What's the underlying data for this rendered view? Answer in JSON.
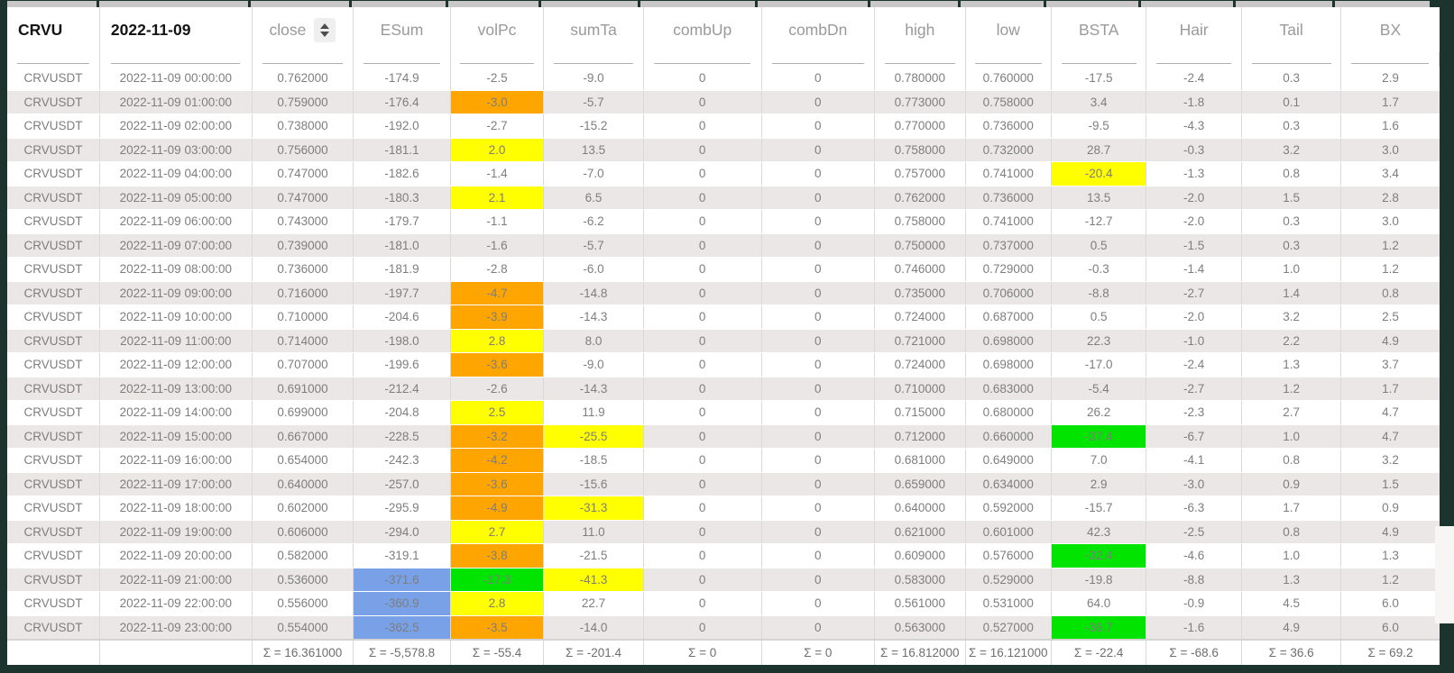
{
  "colors": {
    "orange": "#FFA500",
    "yellow": "#FFFF00",
    "green": "#00E400",
    "blue": "#79A1E8",
    "frame": "#1D342E",
    "stripe": "#EBE7E7"
  },
  "table": {
    "columns": [
      {
        "key": "sym",
        "label": "CRVU",
        "strong": true
      },
      {
        "key": "datetime",
        "label": "2022-11-09",
        "strong": true
      },
      {
        "key": "close",
        "label": "close",
        "sortable": true
      },
      {
        "key": "esum",
        "label": "ESum"
      },
      {
        "key": "volpc",
        "label": "volPc"
      },
      {
        "key": "sumta",
        "label": "sumTa"
      },
      {
        "key": "combup",
        "label": "combUp"
      },
      {
        "key": "combdn",
        "label": "combDn"
      },
      {
        "key": "high",
        "label": "high"
      },
      {
        "key": "low",
        "label": "low"
      },
      {
        "key": "bsta",
        "label": "BSTA"
      },
      {
        "key": "hair",
        "label": "Hair"
      },
      {
        "key": "tail",
        "label": "Tail"
      },
      {
        "key": "bx",
        "label": "BX"
      }
    ],
    "rows": [
      {
        "cells": [
          "CRVUSDT",
          "2022-11-09 00:00:00",
          "0.762000",
          "-174.9",
          "-2.5",
          "-9.0",
          "0",
          "0",
          "0.780000",
          "0.760000",
          "-17.5",
          "-2.4",
          "0.3",
          "2.9"
        ],
        "hl": {}
      },
      {
        "cells": [
          "CRVUSDT",
          "2022-11-09 01:00:00",
          "0.759000",
          "-176.4",
          "-3.0",
          "-5.7",
          "0",
          "0",
          "0.773000",
          "0.758000",
          "3.4",
          "-1.8",
          "0.1",
          "1.7"
        ],
        "hl": {
          "4": "orange"
        }
      },
      {
        "cells": [
          "CRVUSDT",
          "2022-11-09 02:00:00",
          "0.738000",
          "-192.0",
          "-2.7",
          "-15.2",
          "0",
          "0",
          "0.770000",
          "0.736000",
          "-9.5",
          "-4.3",
          "0.3",
          "1.6"
        ],
        "hl": {}
      },
      {
        "cells": [
          "CRVUSDT",
          "2022-11-09 03:00:00",
          "0.756000",
          "-181.1",
          "2.0",
          "13.5",
          "0",
          "0",
          "0.758000",
          "0.732000",
          "28.7",
          "-0.3",
          "3.2",
          "3.0"
        ],
        "hl": {
          "4": "yellow"
        }
      },
      {
        "cells": [
          "CRVUSDT",
          "2022-11-09 04:00:00",
          "0.747000",
          "-182.6",
          "-1.4",
          "-7.0",
          "0",
          "0",
          "0.757000",
          "0.741000",
          "-20.4",
          "-1.3",
          "0.8",
          "3.4"
        ],
        "hl": {
          "10": "yellow"
        }
      },
      {
        "cells": [
          "CRVUSDT",
          "2022-11-09 05:00:00",
          "0.747000",
          "-180.3",
          "2.1",
          "6.5",
          "0",
          "0",
          "0.762000",
          "0.736000",
          "13.5",
          "-2.0",
          "1.5",
          "2.8"
        ],
        "hl": {
          "4": "yellow"
        }
      },
      {
        "cells": [
          "CRVUSDT",
          "2022-11-09 06:00:00",
          "0.743000",
          "-179.7",
          "-1.1",
          "-6.2",
          "0",
          "0",
          "0.758000",
          "0.741000",
          "-12.7",
          "-2.0",
          "0.3",
          "3.0"
        ],
        "hl": {}
      },
      {
        "cells": [
          "CRVUSDT",
          "2022-11-09 07:00:00",
          "0.739000",
          "-181.0",
          "-1.6",
          "-5.7",
          "0",
          "0",
          "0.750000",
          "0.737000",
          "0.5",
          "-1.5",
          "0.3",
          "1.2"
        ],
        "hl": {}
      },
      {
        "cells": [
          "CRVUSDT",
          "2022-11-09 08:00:00",
          "0.736000",
          "-181.9",
          "-2.8",
          "-6.0",
          "0",
          "0",
          "0.746000",
          "0.729000",
          "-0.3",
          "-1.4",
          "1.0",
          "1.2"
        ],
        "hl": {}
      },
      {
        "cells": [
          "CRVUSDT",
          "2022-11-09 09:00:00",
          "0.716000",
          "-197.7",
          "-4.7",
          "-14.8",
          "0",
          "0",
          "0.735000",
          "0.706000",
          "-8.8",
          "-2.7",
          "1.4",
          "0.8"
        ],
        "hl": {
          "4": "orange"
        }
      },
      {
        "cells": [
          "CRVUSDT",
          "2022-11-09 10:00:00",
          "0.710000",
          "-204.6",
          "-3.9",
          "-14.3",
          "0",
          "0",
          "0.724000",
          "0.687000",
          "0.5",
          "-2.0",
          "3.2",
          "2.5"
        ],
        "hl": {
          "4": "orange"
        }
      },
      {
        "cells": [
          "CRVUSDT",
          "2022-11-09 11:00:00",
          "0.714000",
          "-198.0",
          "2.8",
          "8.0",
          "0",
          "0",
          "0.721000",
          "0.698000",
          "22.3",
          "-1.0",
          "2.2",
          "4.9"
        ],
        "hl": {
          "4": "yellow"
        }
      },
      {
        "cells": [
          "CRVUSDT",
          "2022-11-09 12:00:00",
          "0.707000",
          "-199.6",
          "-3.6",
          "-9.0",
          "0",
          "0",
          "0.724000",
          "0.698000",
          "-17.0",
          "-2.4",
          "1.3",
          "3.7"
        ],
        "hl": {
          "4": "orange"
        }
      },
      {
        "cells": [
          "CRVUSDT",
          "2022-11-09 13:00:00",
          "0.691000",
          "-212.4",
          "-2.6",
          "-14.3",
          "0",
          "0",
          "0.710000",
          "0.683000",
          "-5.4",
          "-2.7",
          "1.2",
          "1.7"
        ],
        "hl": {}
      },
      {
        "cells": [
          "CRVUSDT",
          "2022-11-09 14:00:00",
          "0.699000",
          "-204.8",
          "2.5",
          "11.9",
          "0",
          "0",
          "0.715000",
          "0.680000",
          "26.2",
          "-2.3",
          "2.7",
          "4.7"
        ],
        "hl": {
          "4": "yellow"
        }
      },
      {
        "cells": [
          "CRVUSDT",
          "2022-11-09 15:00:00",
          "0.667000",
          "-228.5",
          "-3.2",
          "-25.5",
          "0",
          "0",
          "0.712000",
          "0.660000",
          "-37.4",
          "-6.7",
          "1.0",
          "4.7"
        ],
        "hl": {
          "4": "orange",
          "5": "yellow",
          "10": "green"
        }
      },
      {
        "cells": [
          "CRVUSDT",
          "2022-11-09 16:00:00",
          "0.654000",
          "-242.3",
          "-4.2",
          "-18.5",
          "0",
          "0",
          "0.681000",
          "0.649000",
          "7.0",
          "-4.1",
          "0.8",
          "3.2"
        ],
        "hl": {
          "4": "orange"
        }
      },
      {
        "cells": [
          "CRVUSDT",
          "2022-11-09 17:00:00",
          "0.640000",
          "-257.0",
          "-3.6",
          "-15.6",
          "0",
          "0",
          "0.659000",
          "0.634000",
          "2.9",
          "-3.0",
          "0.9",
          "1.5"
        ],
        "hl": {
          "4": "orange"
        }
      },
      {
        "cells": [
          "CRVUSDT",
          "2022-11-09 18:00:00",
          "0.602000",
          "-295.9",
          "-4.9",
          "-31.3",
          "0",
          "0",
          "0.640000",
          "0.592000",
          "-15.7",
          "-6.3",
          "1.7",
          "0.9"
        ],
        "hl": {
          "4": "orange",
          "5": "yellow"
        }
      },
      {
        "cells": [
          "CRVUSDT",
          "2022-11-09 19:00:00",
          "0.606000",
          "-294.0",
          "2.7",
          "11.0",
          "0",
          "0",
          "0.621000",
          "0.601000",
          "42.3",
          "-2.5",
          "0.8",
          "4.9"
        ],
        "hl": {
          "4": "yellow"
        }
      },
      {
        "cells": [
          "CRVUSDT",
          "2022-11-09 20:00:00",
          "0.582000",
          "-319.1",
          "-3.8",
          "-21.5",
          "0",
          "0",
          "0.609000",
          "0.576000",
          "-32.4",
          "-4.6",
          "1.0",
          "1.3"
        ],
        "hl": {
          "4": "orange",
          "10": "green"
        }
      },
      {
        "cells": [
          "CRVUSDT",
          "2022-11-09 21:00:00",
          "0.536000",
          "-371.6",
          "-17.3",
          "-41.3",
          "0",
          "0",
          "0.583000",
          "0.529000",
          "-19.8",
          "-8.8",
          "1.3",
          "1.2"
        ],
        "hl": {
          "3": "blue",
          "4": "green",
          "5": "yellow"
        }
      },
      {
        "cells": [
          "CRVUSDT",
          "2022-11-09 22:00:00",
          "0.556000",
          "-360.9",
          "2.8",
          "22.7",
          "0",
          "0",
          "0.561000",
          "0.531000",
          "64.0",
          "-0.9",
          "4.5",
          "6.0"
        ],
        "hl": {
          "3": "blue",
          "4": "yellow"
        }
      },
      {
        "cells": [
          "CRVUSDT",
          "2022-11-09 23:00:00",
          "0.554000",
          "-362.5",
          "-3.5",
          "-14.0",
          "0",
          "0",
          "0.563000",
          "0.527000",
          "-36.7",
          "-1.6",
          "4.9",
          "6.0"
        ],
        "hl": {
          "3": "blue",
          "4": "orange",
          "10": "green"
        }
      }
    ],
    "footer": [
      "",
      "",
      "Σ = 16.361000",
      "Σ = -5,578.8",
      "Σ = -55.4",
      "Σ = -201.4",
      "Σ = 0",
      "Σ = 0",
      "Σ = 16.812000",
      "Σ = 16.121000",
      "Σ = -22.4",
      "Σ = -68.6",
      "Σ = 36.6",
      "Σ = 69.2"
    ]
  }
}
